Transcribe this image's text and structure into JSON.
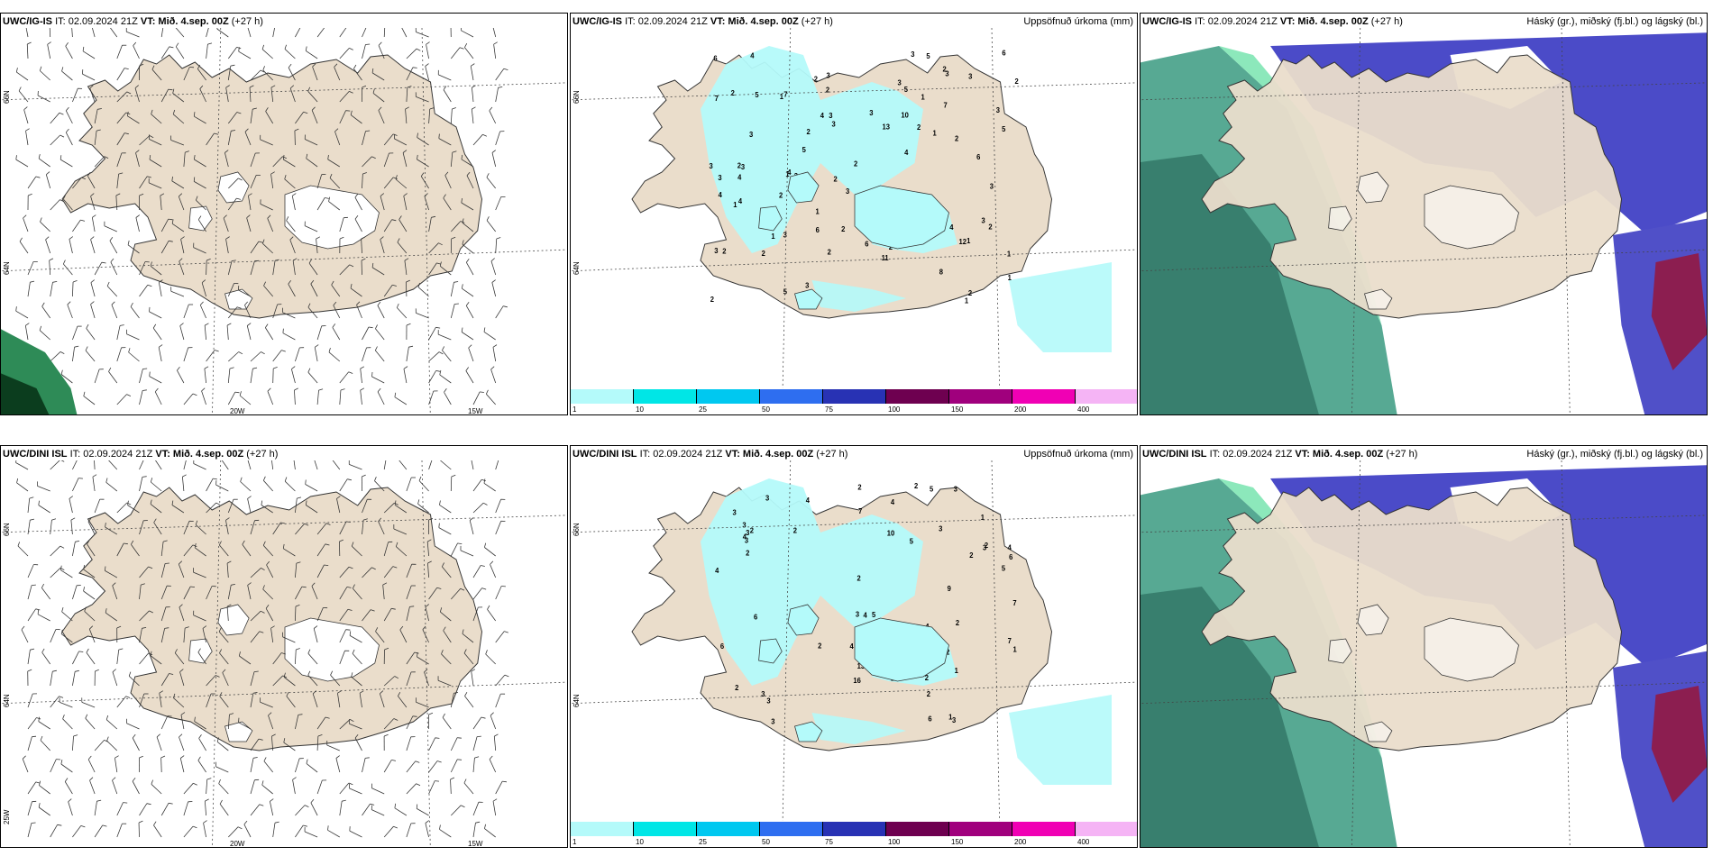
{
  "panels": [
    {
      "model": "UWC/IG-IS",
      "it": "IT: 02.09.2024 21Z",
      "vt_label": "VT:",
      "vt_value": "Mið. 4.sep. 00Z",
      "lead": "(+27 h)",
      "field": "",
      "lat_labels": [
        "66N",
        "64N"
      ],
      "lon_labels": [
        "20W",
        "15W"
      ]
    },
    {
      "model": "UWC/IG-IS",
      "it": "IT: 02.09.2024 21Z",
      "vt_label": "VT:",
      "vt_value": "Mið. 4.sep. 00Z",
      "lead": "(+27 h)",
      "field": "Uppsöfnuð úrkoma (mm)",
      "lat_labels": [
        "66N",
        "64N"
      ],
      "lon_labels": []
    },
    {
      "model": "UWC/IG-IS",
      "it": "IT: 02.09.2024 21Z",
      "vt_label": "VT:",
      "vt_value": "Mið. 4.sep. 00Z",
      "lead": "(+27 h)",
      "field": "Háský (gr.), miðský (fj.bl.) og lágský (bl.)",
      "lat_labels": [],
      "lon_labels": []
    },
    {
      "model": "UWC/DINI ISL",
      "it": "IT: 02.09.2024 21Z",
      "vt_label": "VT:",
      "vt_value": "Mið. 4.sep. 00Z",
      "lead": "(+27 h)",
      "field": "",
      "lat_labels": [
        "66N",
        "64N",
        "25W"
      ],
      "lon_labels": [
        "20W",
        "15W"
      ]
    },
    {
      "model": "UWC/DINI ISL",
      "it": "IT: 02.09.2024 21Z",
      "vt_label": "VT:",
      "vt_value": "Mið. 4.sep. 00Z",
      "lead": "(+27 h)",
      "field": "Uppsöfnuð úrkoma (mm)",
      "lat_labels": [
        "66N",
        "64N"
      ],
      "lon_labels": []
    },
    {
      "model": "UWC/DINI ISL",
      "it": "IT: 02.09.2024 21Z",
      "vt_label": "VT:",
      "vt_value": "Mið. 4.sep. 00Z",
      "lead": "(+27 h)",
      "field": "Háský (gr.), miðský (fj.bl.) og lágský (bl.)",
      "lat_labels": [],
      "lon_labels": []
    }
  ],
  "precip_colorbar": {
    "labels": [
      "1",
      "10",
      "25",
      "50",
      "75",
      "100",
      "150",
      "200",
      "400"
    ],
    "colors": [
      "#b4fafa",
      "#00e6e6",
      "#00c8f0",
      "#2e6ef0",
      "#2832b4",
      "#6e0050",
      "#a0007d",
      "#f000b4",
      "#f5b4f5"
    ]
  },
  "precip_values_top": [
    "4",
    "1",
    "3",
    "2",
    "3",
    "3",
    "1",
    "3",
    "3",
    "3",
    "2",
    "3",
    "1",
    "3",
    "5",
    "2",
    "6",
    "2",
    "2",
    "1",
    "1",
    "2",
    "3",
    "3",
    "2",
    "10",
    "5",
    "3",
    "4",
    "3",
    "4",
    "8",
    "3",
    "7",
    "6",
    "6",
    "2",
    "3",
    "4",
    "4",
    "4",
    "5",
    "5",
    "3",
    "5",
    "3",
    "6",
    "2",
    "1",
    "1",
    "2",
    "2",
    "3",
    "3",
    "6",
    "2",
    "1",
    "7",
    "6",
    "11",
    "13",
    "12",
    "1",
    "4",
    "2",
    "2",
    "2",
    "2",
    "4",
    "7",
    "5",
    "3",
    "2",
    "1",
    "2",
    "4",
    "5",
    "1",
    "2",
    "2",
    "5",
    "3",
    "1"
  ],
  "precip_values_bottom": [
    "2",
    "2",
    "3",
    "1",
    "4",
    "2",
    "2",
    "4",
    "6",
    "6",
    "3",
    "3",
    "4",
    "3",
    "5",
    "3",
    "2",
    "2",
    "4",
    "5",
    "7",
    "5",
    "4",
    "2",
    "3",
    "3",
    "3",
    "1",
    "4",
    "2",
    "4",
    "2",
    "3",
    "2",
    "2",
    "10",
    "6",
    "7",
    "16",
    "7",
    "13",
    "3",
    "9",
    "2",
    "3",
    "4",
    "1",
    "2",
    "2",
    "3",
    "5",
    "1",
    "6",
    "3",
    "2",
    "1",
    "9",
    "2"
  ],
  "cloud_legend": {
    "high": "#1e965a",
    "mid": "#3c3cc8",
    "low": "#7896dc"
  },
  "land_color": "#eaddcb"
}
